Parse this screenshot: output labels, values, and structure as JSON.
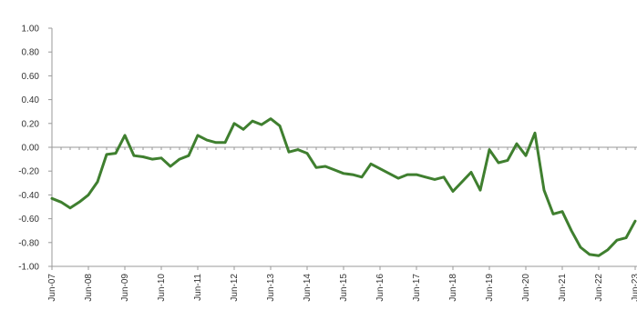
{
  "chart_data": {
    "type": "line",
    "title": "",
    "xlabel": "",
    "ylabel": "",
    "ylim": [
      -1.0,
      1.0
    ],
    "y_ticks": [
      "1.00",
      "0.80",
      "0.60",
      "0.40",
      "0.20",
      "0.00",
      "-0.20",
      "-0.40",
      "-0.60",
      "-0.80",
      "-1.00"
    ],
    "x_tick_labels": [
      "Jun-07",
      "Jun-08",
      "Jun-09",
      "Jun-10",
      "Jun-11",
      "Jun-12",
      "Jun-13",
      "Jun-14",
      "Jun-15",
      "Jun-16",
      "Jun-17",
      "Jun-18",
      "Jun-19",
      "Jun-20",
      "Jun-21",
      "Jun-22",
      "Jun-23"
    ],
    "x_tick_years": [
      2007,
      2008,
      2009,
      2010,
      2011,
      2012,
      2013,
      2014,
      2015,
      2016,
      2017,
      2018,
      2019,
      2020,
      2021,
      2022,
      2023
    ],
    "grid": false,
    "colors": {
      "line": "#3f7f2f",
      "axis": "#999999"
    },
    "series": [
      {
        "x": [
          2007.0,
          2007.25,
          2007.5,
          2007.75,
          2008.0,
          2008.25,
          2008.5,
          2008.75,
          2009.0,
          2009.25,
          2009.5,
          2009.75,
          2010.0,
          2010.25,
          2010.5,
          2010.75,
          2011.0,
          2011.25,
          2011.5,
          2011.75,
          2012.0,
          2012.25,
          2012.5,
          2012.75,
          2013.0,
          2013.25,
          2013.5,
          2013.75,
          2014.0,
          2014.25,
          2014.5,
          2014.75,
          2015.0,
          2015.25,
          2015.5,
          2015.75,
          2016.0,
          2016.25,
          2016.5,
          2016.75,
          2017.0,
          2017.25,
          2017.5,
          2017.75,
          2018.0,
          2018.25,
          2018.5,
          2018.75,
          2019.0,
          2019.25,
          2019.5,
          2019.75,
          2020.0,
          2020.25,
          2020.5,
          2020.75,
          2021.0,
          2021.25,
          2021.5,
          2021.75,
          2022.0,
          2022.25,
          2022.5,
          2022.75,
          2023.0
        ],
        "values": [
          -0.43,
          -0.46,
          -0.51,
          -0.46,
          -0.4,
          -0.29,
          -0.06,
          -0.05,
          0.1,
          -0.07,
          -0.08,
          -0.1,
          -0.09,
          -0.16,
          -0.1,
          -0.07,
          0.1,
          0.06,
          0.04,
          0.04,
          0.2,
          0.15,
          0.22,
          0.19,
          0.24,
          0.18,
          -0.04,
          -0.02,
          -0.05,
          -0.17,
          -0.16,
          -0.19,
          -0.22,
          -0.23,
          -0.25,
          -0.14,
          -0.18,
          -0.22,
          -0.26,
          -0.23,
          -0.23,
          -0.25,
          -0.27,
          -0.25,
          -0.37,
          -0.29,
          -0.21,
          -0.36,
          -0.02,
          -0.13,
          -0.11,
          0.03,
          -0.07,
          0.12,
          -0.36,
          -0.56,
          -0.54,
          -0.7,
          -0.84,
          -0.9,
          -0.91,
          -0.86,
          -0.78,
          -0.76,
          -0.62
        ]
      }
    ]
  }
}
